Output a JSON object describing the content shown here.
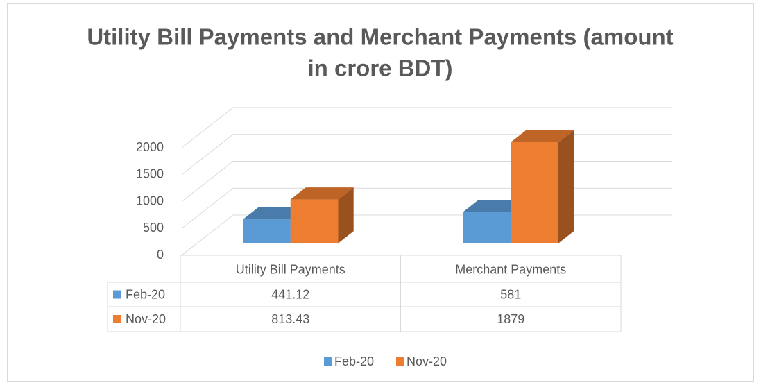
{
  "chart_data": {
    "type": "bar3d",
    "title_lines": [
      "Utility Bill Payments and Merchant Payments (amount",
      "in crore BDT)"
    ],
    "categories": [
      "Utility Bill Payments",
      "Merchant Payments"
    ],
    "series": [
      {
        "name": "Feb-20",
        "color": "#5b9bd5",
        "values": [
          441.12,
          581
        ]
      },
      {
        "name": "Nov-20",
        "color": "#ed7d31",
        "values": [
          813.43,
          1879
        ]
      }
    ],
    "ylim": [
      0,
      2000
    ],
    "yticks": [
      0,
      500,
      1000,
      1500,
      2000
    ],
    "grid": true,
    "data_table": true,
    "legend": "bottom"
  }
}
